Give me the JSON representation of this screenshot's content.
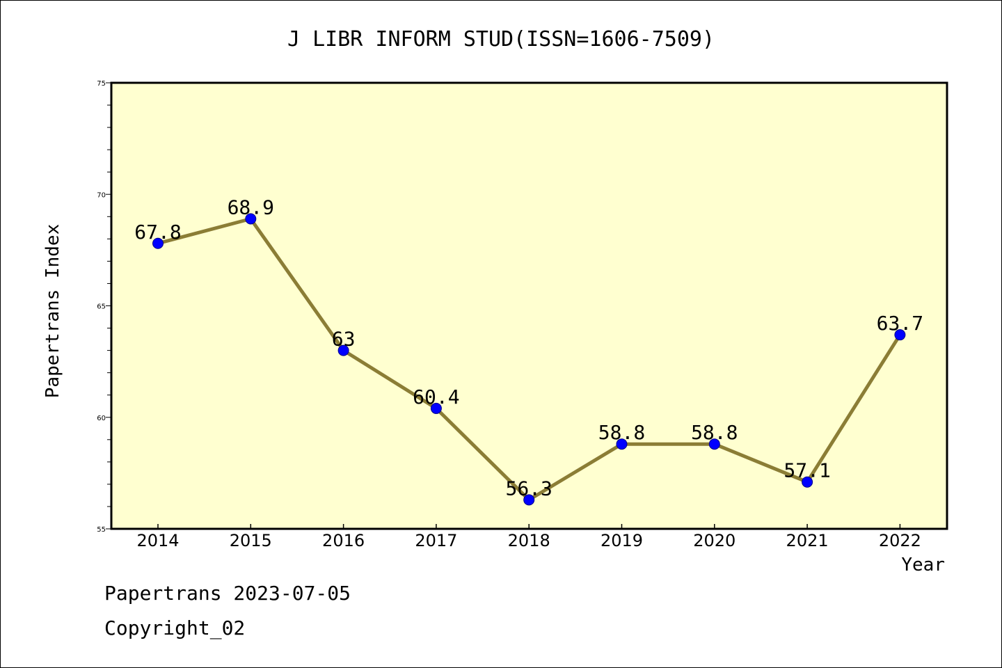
{
  "chart_data": {
    "type": "line",
    "title": "J LIBR INFORM STUD(ISSN=1606-7509)",
    "xlabel": "Year",
    "ylabel": "Papertrans Index",
    "categories": [
      "2014",
      "2015",
      "2016",
      "2017",
      "2018",
      "2019",
      "2020",
      "2021",
      "2022"
    ],
    "series": [
      {
        "values": [
          67.8,
          68.9,
          63,
          60.4,
          56.3,
          58.8,
          58.8,
          57.1,
          63.7
        ]
      }
    ],
    "data_labels": [
      "67.8",
      "68.9",
      "63",
      "60.4",
      "56.3",
      "58.8",
      "58.8",
      "57.1",
      "63.7"
    ],
    "ylim": [
      55,
      75
    ],
    "yticks": [
      "55",
      "60",
      "65",
      "70",
      "75"
    ],
    "grid": false,
    "legend": "none",
    "colors": {
      "plot_background": "#ffffd0",
      "line": "#8b7d35",
      "marker": "#0000ff"
    }
  },
  "footer": {
    "line1": "Papertrans 2023-07-05",
    "line2": "Copyright_02"
  }
}
